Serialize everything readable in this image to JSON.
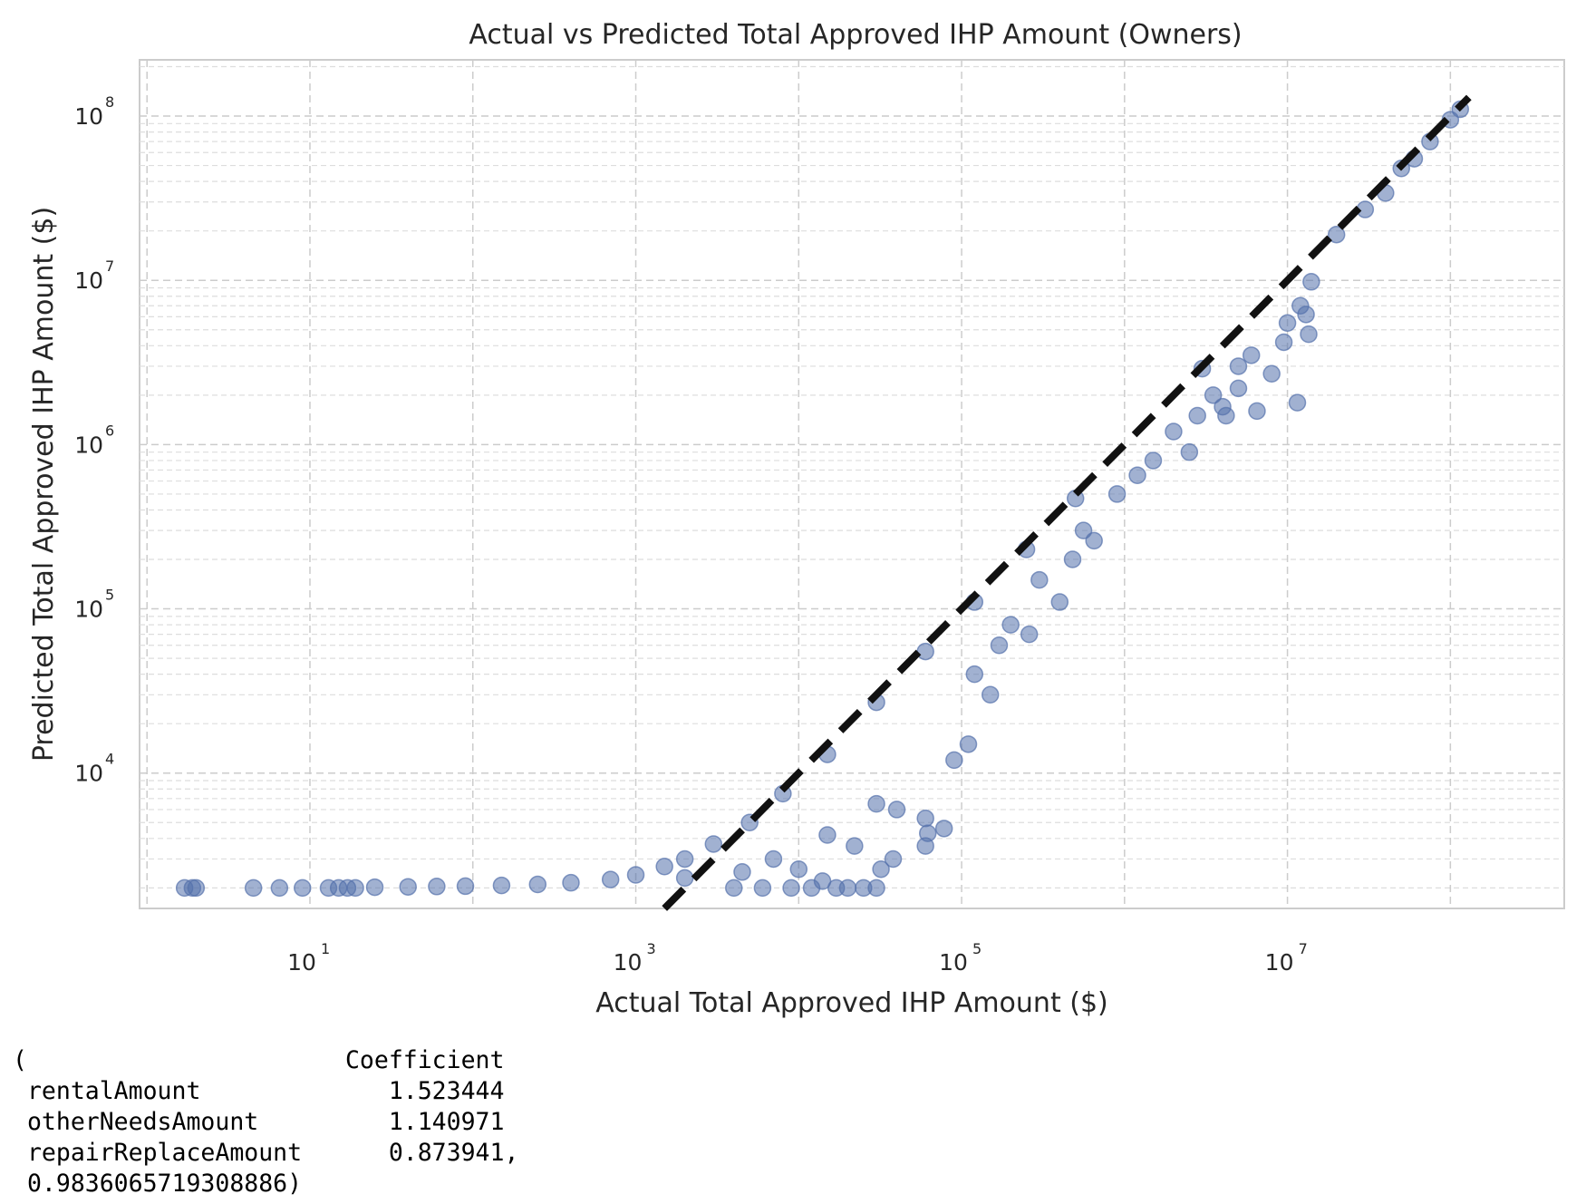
{
  "chart_data": {
    "type": "scatter",
    "title": "Actual vs Predicted Total Approved IHP Amount (Owners)",
    "xlabel": "Actual Total Approved IHP Amount ($)",
    "ylabel": "Predicted Total Approved IHP Amount ($)",
    "x_scale": "log",
    "y_scale": "log",
    "xlim": [
      0.9,
      500000000
    ],
    "ylim": [
      1500,
      220000000
    ],
    "x_ticks": [
      {
        "base": "10",
        "exp": "1",
        "value": 10
      },
      {
        "base": "10",
        "exp": "3",
        "value": 1000
      },
      {
        "base": "10",
        "exp": "5",
        "value": 100000
      },
      {
        "base": "10",
        "exp": "7",
        "value": 10000000
      }
    ],
    "y_ticks": [
      {
        "base": "10",
        "exp": "4",
        "value": 10000
      },
      {
        "base": "10",
        "exp": "5",
        "value": 100000
      },
      {
        "base": "10",
        "exp": "6",
        "value": 1000000
      },
      {
        "base": "10",
        "exp": "7",
        "value": 10000000
      },
      {
        "base": "10",
        "exp": "8",
        "value": 100000000
      }
    ],
    "grid": true,
    "point_color": "#5471ab",
    "reference_line": {
      "style": "dashed",
      "color": "#111111",
      "x": [
        1500,
        130000000
      ],
      "y": [
        1500,
        130000000
      ]
    },
    "points": [
      [
        1.7,
        2000
      ],
      [
        1.9,
        2000
      ],
      [
        2.0,
        2000
      ],
      [
        4.5,
        2000
      ],
      [
        6.5,
        2000
      ],
      [
        9.0,
        2000
      ],
      [
        13,
        2000
      ],
      [
        15,
        2000
      ],
      [
        17,
        2000
      ],
      [
        19,
        2000
      ],
      [
        25,
        2020
      ],
      [
        40,
        2030
      ],
      [
        60,
        2040
      ],
      [
        90,
        2050
      ],
      [
        150,
        2070
      ],
      [
        250,
        2100
      ],
      [
        400,
        2150
      ],
      [
        700,
        2250
      ],
      [
        1000,
        2400
      ],
      [
        1500,
        2700
      ],
      [
        2000,
        3000
      ],
      [
        3000,
        3700
      ],
      [
        4000,
        2000
      ],
      [
        4500,
        2500
      ],
      [
        6000,
        2000
      ],
      [
        7000,
        3000
      ],
      [
        9000,
        2000
      ],
      [
        10000,
        2600
      ],
      [
        12000,
        2000
      ],
      [
        14000,
        2200
      ],
      [
        17000,
        2000
      ],
      [
        20000,
        2000
      ],
      [
        25000,
        2000
      ],
      [
        30000,
        2000
      ],
      [
        15000,
        4200
      ],
      [
        22000,
        3600
      ],
      [
        30000,
        6500
      ],
      [
        40000,
        6000
      ],
      [
        32000,
        2600
      ],
      [
        38000,
        3000
      ],
      [
        60000,
        3600
      ],
      [
        62000,
        4300
      ],
      [
        60000,
        5300
      ],
      [
        78000,
        4600
      ],
      [
        90000,
        12000
      ],
      [
        110000,
        15000
      ],
      [
        120000,
        40000
      ],
      [
        150000,
        30000
      ],
      [
        170000,
        60000
      ],
      [
        200000,
        80000
      ],
      [
        260000,
        70000
      ],
      [
        300000,
        150000
      ],
      [
        400000,
        110000
      ],
      [
        480000,
        200000
      ],
      [
        560000,
        300000
      ],
      [
        650000,
        260000
      ],
      [
        900000,
        500000
      ],
      [
        1200000,
        650000
      ],
      [
        1500000,
        800000
      ],
      [
        2000000,
        1200000
      ],
      [
        2500000,
        900000
      ],
      [
        2800000,
        1500000
      ],
      [
        3500000,
        2000000
      ],
      [
        4000000,
        1700000
      ],
      [
        5000000,
        3000000
      ],
      [
        6000000,
        3500000
      ],
      [
        8000000,
        2700000
      ],
      [
        10000000,
        5500000
      ],
      [
        9500000,
        4200000
      ],
      [
        12000000,
        7000000
      ],
      [
        13500000,
        4700000
      ],
      [
        14000000,
        9800000
      ],
      [
        13000000,
        6200000
      ],
      [
        11500000,
        1800000
      ],
      [
        6500000,
        1600000
      ],
      [
        5000000,
        2200000
      ],
      [
        4200000,
        1500000
      ],
      [
        3000000,
        2900000
      ],
      [
        20000000,
        19000000
      ],
      [
        30000000,
        27000000
      ],
      [
        40000000,
        34000000
      ],
      [
        50000000,
        48000000
      ],
      [
        60000000,
        55000000
      ],
      [
        75000000,
        70000000
      ],
      [
        100000000,
        95000000
      ],
      [
        115000000,
        110000000
      ],
      [
        2000,
        2300
      ],
      [
        5000,
        5000
      ],
      [
        8000,
        7500
      ],
      [
        15000,
        13000
      ],
      [
        30000,
        27000
      ],
      [
        60000,
        55000
      ],
      [
        120000,
        110000
      ],
      [
        250000,
        230000
      ],
      [
        500000,
        470000
      ]
    ]
  },
  "console_output": {
    "lines": [
      "(                      Coefficient",
      " rentalAmount             1.523444",
      " otherNeedsAmount         1.140971",
      " repairReplaceAmount      0.873941,",
      " 0.9836065719308886)"
    ]
  }
}
